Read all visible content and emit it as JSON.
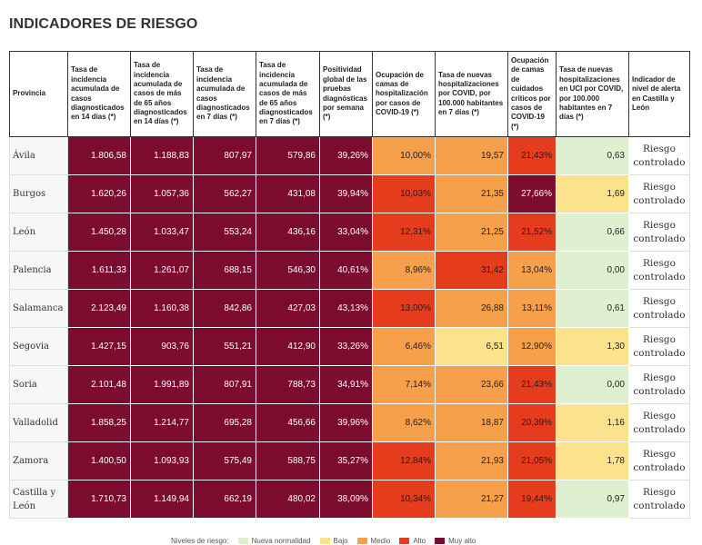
{
  "title": "INDICADORES DE RIESGO",
  "headers": [
    "Provincia",
    "Tasa de incidencia acumulada de casos diagnosticados en 14 días (*)",
    "Tasa de incidencia acumulada de casos de más de 65 años diagnosticados en 14 días (*)",
    "Tasa de incidencia acumulada de casos diagnosticados en 7 días (*)",
    "Tasa de incidencia acumulada de casos de más de 65 años diagnosticados en 7 días (*)",
    "Positividad global de las pruebas diagnósticas por semana (*)",
    "Ocupación de camas de hospitalización por casos de COVID-19 (*)",
    "Tasa de nuevas hospitalizaciones por COVID, por 100.000 habitantes en 7 días (*)",
    "Ocupación de camas de cuidados críticos por casos de COVID-19 (*)",
    "Tasa de nuevas hospitalizaciones en UCI por COVID, por 100.000 habitantes en 7 días (*)",
    "Indicador de nivel de alerta en Castilla y León"
  ],
  "rows": [
    {
      "provincia": "Ávila",
      "values": [
        "1.806,58",
        "1.188,83",
        "807,97",
        "579,86",
        "39,26%",
        "10,00%",
        "19,57",
        "21,43%",
        "0,63"
      ],
      "levels": [
        "muyalto",
        "muyalto",
        "muyalto",
        "muyalto",
        "muyalto",
        "medio",
        "medio",
        "alto",
        "nueva"
      ],
      "alerta": "Riesgo controlado"
    },
    {
      "provincia": "Burgos",
      "values": [
        "1.620,26",
        "1.057,36",
        "562,27",
        "431,08",
        "39,94%",
        "10,03%",
        "21,35",
        "27,66%",
        "1,69"
      ],
      "levels": [
        "muyalto",
        "muyalto",
        "muyalto",
        "muyalto",
        "muyalto",
        "alto",
        "medio",
        "muyalto",
        "bajo"
      ],
      "alerta": "Riesgo controlado"
    },
    {
      "provincia": "León",
      "values": [
        "1.450,28",
        "1.033,47",
        "553,24",
        "436,16",
        "33,04%",
        "12,31%",
        "21,25",
        "21,52%",
        "0,66"
      ],
      "levels": [
        "muyalto",
        "muyalto",
        "muyalto",
        "muyalto",
        "muyalto",
        "alto",
        "medio",
        "alto",
        "nueva"
      ],
      "alerta": "Riesgo controlado"
    },
    {
      "provincia": "Palencia",
      "values": [
        "1.611,33",
        "1.261,07",
        "688,15",
        "546,30",
        "40,61%",
        "8,96%",
        "31,42",
        "13,04%",
        "0,00"
      ],
      "levels": [
        "muyalto",
        "muyalto",
        "muyalto",
        "muyalto",
        "muyalto",
        "medio",
        "alto",
        "medio",
        "nueva"
      ],
      "alerta": "Riesgo controlado"
    },
    {
      "provincia": "Salamanca",
      "values": [
        "2.123,49",
        "1.160,38",
        "842,86",
        "427,03",
        "43,13%",
        "13,00%",
        "26,88",
        "13,11%",
        "0,61"
      ],
      "levels": [
        "muyalto",
        "muyalto",
        "muyalto",
        "muyalto",
        "muyalto",
        "alto",
        "medio",
        "medio",
        "nueva"
      ],
      "alerta": "Riesgo controlado"
    },
    {
      "provincia": "Segovia",
      "values": [
        "1.427,15",
        "903,76",
        "551,21",
        "412,90",
        "33,26%",
        "6,46%",
        "6,51",
        "12,90%",
        "1,30"
      ],
      "levels": [
        "muyalto",
        "muyalto",
        "muyalto",
        "muyalto",
        "muyalto",
        "medio",
        "bajo",
        "medio",
        "bajo"
      ],
      "alerta": "Riesgo controlado"
    },
    {
      "provincia": "Soria",
      "values": [
        "2.101,48",
        "1.991,89",
        "807,91",
        "788,73",
        "34,91%",
        "7,14%",
        "23,66",
        "21,43%",
        "0,00"
      ],
      "levels": [
        "muyalto",
        "muyalto",
        "muyalto",
        "muyalto",
        "muyalto",
        "medio",
        "medio",
        "alto",
        "nueva"
      ],
      "alerta": "Riesgo controlado"
    },
    {
      "provincia": "Valladolid",
      "values": [
        "1.858,25",
        "1.214,77",
        "695,28",
        "456,66",
        "39,96%",
        "8,62%",
        "18,87",
        "20,39%",
        "1,16"
      ],
      "levels": [
        "muyalto",
        "muyalto",
        "muyalto",
        "muyalto",
        "muyalto",
        "medio",
        "medio",
        "alto",
        "bajo"
      ],
      "alerta": "Riesgo controlado"
    },
    {
      "provincia": "Zamora",
      "values": [
        "1.400,50",
        "1.093,93",
        "575,49",
        "588,75",
        "35,27%",
        "12,84%",
        "21,93",
        "21,05%",
        "1,78"
      ],
      "levels": [
        "muyalto",
        "muyalto",
        "muyalto",
        "muyalto",
        "muyalto",
        "alto",
        "medio",
        "alto",
        "bajo"
      ],
      "alerta": "Riesgo controlado"
    },
    {
      "provincia": "Castilla y León",
      "values": [
        "1.710,73",
        "1.149,94",
        "662,19",
        "480,02",
        "38,09%",
        "10,34%",
        "21,27",
        "19,44%",
        "0,97"
      ],
      "levels": [
        "muyalto",
        "muyalto",
        "muyalto",
        "muyalto",
        "muyalto",
        "alto",
        "medio",
        "alto",
        "nueva"
      ],
      "alerta": "Riesgo controlado"
    }
  ],
  "legend": {
    "label": "Niveles de riesgo:",
    "items": [
      {
        "level": "nueva",
        "label": "Nueva normalidad",
        "color": "#dff0d0"
      },
      {
        "level": "bajo",
        "label": "Bajo",
        "color": "#fbe28c"
      },
      {
        "level": "medio",
        "label": "Medio",
        "color": "#f6a04b"
      },
      {
        "level": "alto",
        "label": "Alto",
        "color": "#e43c1c"
      },
      {
        "level": "muyalto",
        "label": "Muy alto",
        "color": "#7b0c2e"
      }
    ]
  }
}
